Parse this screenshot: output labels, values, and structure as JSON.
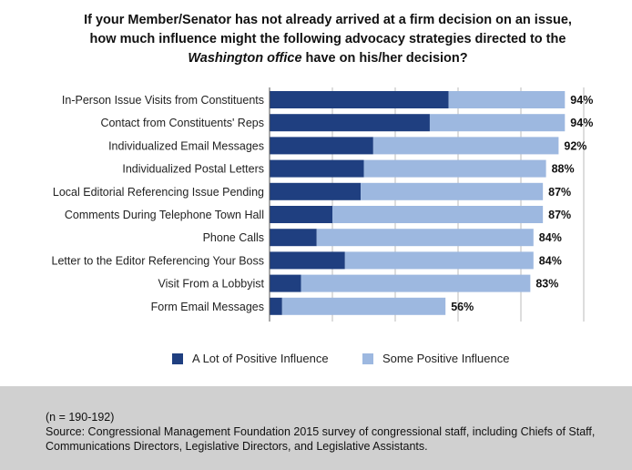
{
  "title": {
    "line1": "If your Member/Senator has not already arrived at a firm decision on an issue,",
    "line2": "how much influence might the following advocacy strategies directed to the",
    "line3_italic": "Washington office",
    "line3_rest": " have on his/her decision?"
  },
  "colors": {
    "dark": "#1f3f80",
    "light": "#9db8e0",
    "grid": "#bbbbbb",
    "footer_bg": "#d0d0d0"
  },
  "chart_data": {
    "type": "bar",
    "orientation": "horizontal",
    "stacked": true,
    "title": "If your Member/Senator has not already arrived at a firm decision on an issue, how much influence might the following advocacy strategies directed to the Washington office have on his/her decision?",
    "xlim": [
      0,
      100
    ],
    "grid": true,
    "legend_position": "bottom",
    "categories": [
      "In-Person Issue Visits from Constituents",
      "Contact from Constituents' Reps",
      "Individualized Email Messages",
      "Individualized Postal Letters",
      "Local Editorial Referencing Issue Pending",
      "Comments During Telephone Town Hall",
      "Phone Calls",
      "Letter to the Editor Referencing Your Boss",
      "Visit From a Lobbyist",
      "Form Email Messages"
    ],
    "series": [
      {
        "name": "A Lot of Positive Influence",
        "values": [
          57,
          51,
          33,
          30,
          29,
          20,
          15,
          24,
          10,
          4
        ]
      },
      {
        "name": "Some Positive Influence",
        "values": [
          37,
          43,
          59,
          58,
          58,
          67,
          69,
          60,
          73,
          52
        ]
      }
    ],
    "total_labels": [
      "94%",
      "94%",
      "92%",
      "88%",
      "87%",
      "87%",
      "84%",
      "84%",
      "83%",
      "56%"
    ]
  },
  "footer": {
    "n_note": "(n = 190-192)",
    "source": "Source: Congressional Management Foundation 2015 survey of congressional staff, including Chiefs of Staff, Communications Directors, Legislative Directors, and Legislative Assistants."
  }
}
